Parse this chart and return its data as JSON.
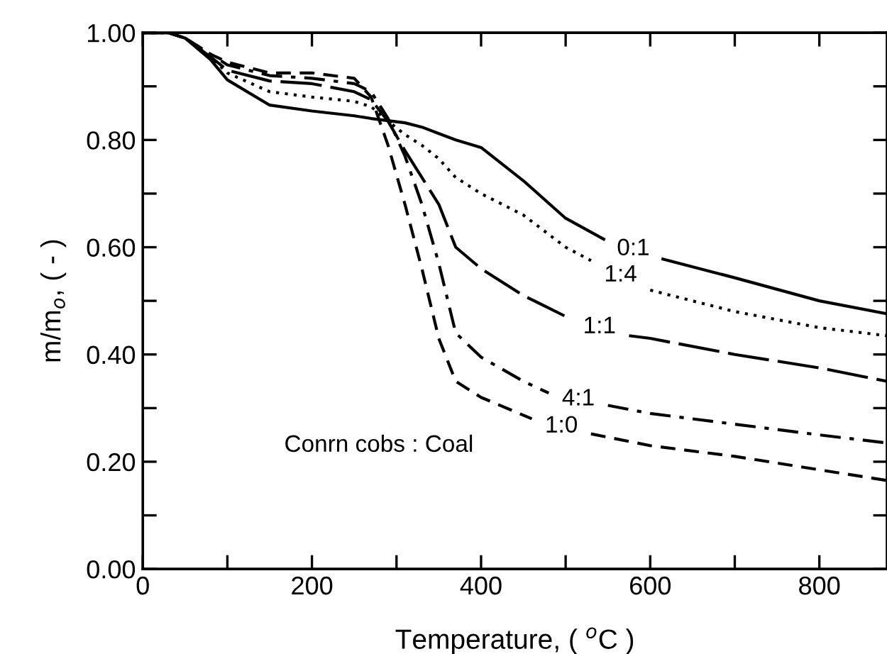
{
  "chart_data": {
    "type": "line",
    "xlabel": "Temperature, ( $^{o}$C )",
    "ylabel": "m/m$_{o}$, ( - )",
    "xlim": [
      0,
      880
    ],
    "ylim": [
      0,
      1.0
    ],
    "xticks": [
      0,
      {
        "value": 100,
        "label": null
      },
      200,
      {
        "value": 300,
        "label": null
      },
      400,
      {
        "value": 500,
        "label": null
      },
      600,
      {
        "value": 700,
        "label": null
      },
      800
    ],
    "yticks": [
      {
        "value": 0,
        "label": "0.00"
      },
      {
        "value": 0.1,
        "label": null
      },
      {
        "value": 0.2,
        "label": "0.20"
      },
      {
        "value": 0.3,
        "label": null
      },
      {
        "value": 0.4,
        "label": "0.40"
      },
      {
        "value": 0.5,
        "label": null
      },
      {
        "value": 0.6,
        "label": "0.60"
      },
      {
        "value": 0.7,
        "label": null
      },
      {
        "value": 0.8,
        "label": "0.80"
      },
      {
        "value": 0.9,
        "label": null
      },
      {
        "value": 1.0,
        "label": "1.00"
      }
    ],
    "grid": false,
    "legend": false,
    "marker": "none",
    "series": [
      {
        "name": "0:1",
        "color": "#000000",
        "line_style": "solid",
        "x": [
          0,
          30,
          50,
          80,
          100,
          150,
          200,
          250,
          270,
          290,
          310,
          330,
          350,
          370,
          400,
          450,
          500,
          545,
          580,
          615,
          700,
          800,
          880
        ],
        "values": [
          1,
          1,
          0.99,
          0.95,
          0.912,
          0.865,
          0.854,
          0.845,
          0.84,
          0.836,
          0.832,
          0.824,
          0.812,
          0.8,
          0.786,
          0.724,
          0.654,
          0.615,
          null,
          0.578,
          0.543,
          0.5,
          0.476
        ]
      },
      {
        "name": "1:4",
        "color": "#000000",
        "line_style": "dotted",
        "x": [
          0,
          30,
          50,
          80,
          100,
          150,
          200,
          250,
          270,
          290,
          310,
          330,
          350,
          370,
          400,
          450,
          500,
          530,
          565,
          600,
          700,
          800,
          880
        ],
        "values": [
          1,
          1,
          0.99,
          0.955,
          0.925,
          0.89,
          0.88,
          0.872,
          0.862,
          0.835,
          0.81,
          0.79,
          0.765,
          0.73,
          0.7,
          0.66,
          0.6,
          0.575,
          null,
          0.52,
          0.48,
          0.45,
          0.435
        ]
      },
      {
        "name": "1:1",
        "color": "#000000",
        "line_style": "longdash",
        "x": [
          0,
          30,
          50,
          80,
          100,
          150,
          200,
          250,
          270,
          290,
          310,
          330,
          350,
          370,
          400,
          450,
          505,
          540,
          575,
          600,
          700,
          800,
          880
        ],
        "values": [
          1,
          1,
          0.99,
          0.955,
          0.93,
          0.91,
          0.905,
          0.89,
          0.875,
          0.835,
          0.78,
          0.73,
          0.68,
          0.6,
          0.56,
          0.51,
          0.467,
          null,
          0.435,
          0.43,
          0.4,
          0.375,
          0.35
        ]
      },
      {
        "name": "4:1",
        "color": "#000000",
        "line_style": "dashdot",
        "x": [
          0,
          30,
          50,
          80,
          100,
          150,
          200,
          250,
          270,
          290,
          310,
          330,
          350,
          370,
          400,
          450,
          480,
          515,
          550,
          600,
          700,
          800,
          880
        ],
        "values": [
          1,
          1,
          0.99,
          0.96,
          0.94,
          0.92,
          0.915,
          0.905,
          0.89,
          0.84,
          0.77,
          0.68,
          0.57,
          0.44,
          0.395,
          0.35,
          0.328,
          null,
          0.305,
          0.29,
          0.27,
          0.25,
          0.235
        ]
      },
      {
        "name": "1:0",
        "color": "#000000",
        "line_style": "dashed",
        "x": [
          0,
          30,
          50,
          80,
          100,
          150,
          200,
          250,
          270,
          290,
          310,
          330,
          350,
          370,
          400,
          460,
          495,
          530,
          600,
          700,
          800,
          880
        ],
        "values": [
          1,
          1,
          0.99,
          0.96,
          0.945,
          0.925,
          0.925,
          0.915,
          0.88,
          0.79,
          0.68,
          0.56,
          0.43,
          0.35,
          0.32,
          0.28,
          null,
          0.252,
          0.23,
          0.21,
          0.185,
          0.165
        ]
      }
    ],
    "annotations": [
      "Conrn cobs : Coal"
    ]
  }
}
